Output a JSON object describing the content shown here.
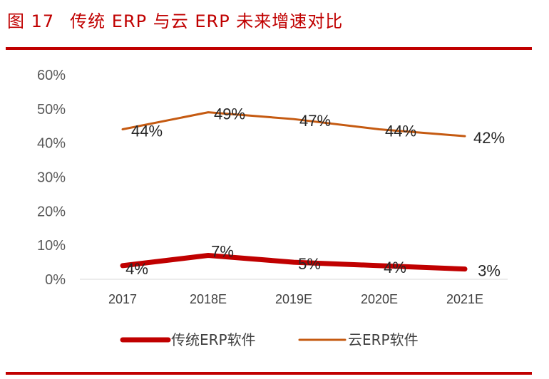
{
  "figure": {
    "number": "图 17",
    "title": "传统 ERP 与云 ERP 未来增速对比"
  },
  "chart_data": {
    "type": "line",
    "categories": [
      "2017",
      "2018E",
      "2019E",
      "2020E",
      "2021E"
    ],
    "ylim": [
      0,
      60
    ],
    "yticks": [
      "0%",
      "10%",
      "20%",
      "30%",
      "40%",
      "50%",
      "60%"
    ],
    "grid": false,
    "legend_position": "bottom",
    "series": [
      {
        "name": "传统ERP软件",
        "color": "#c00000",
        "values": [
          4,
          7,
          5,
          4,
          3
        ],
        "labels": [
          "4%",
          "7%",
          "5%",
          "4%",
          "3%"
        ]
      },
      {
        "name": "云ERP软件",
        "color": "#c55a11",
        "values": [
          44,
          49,
          47,
          44,
          42
        ],
        "labels": [
          "44%",
          "49%",
          "47%",
          "44%",
          "42%"
        ]
      }
    ]
  }
}
